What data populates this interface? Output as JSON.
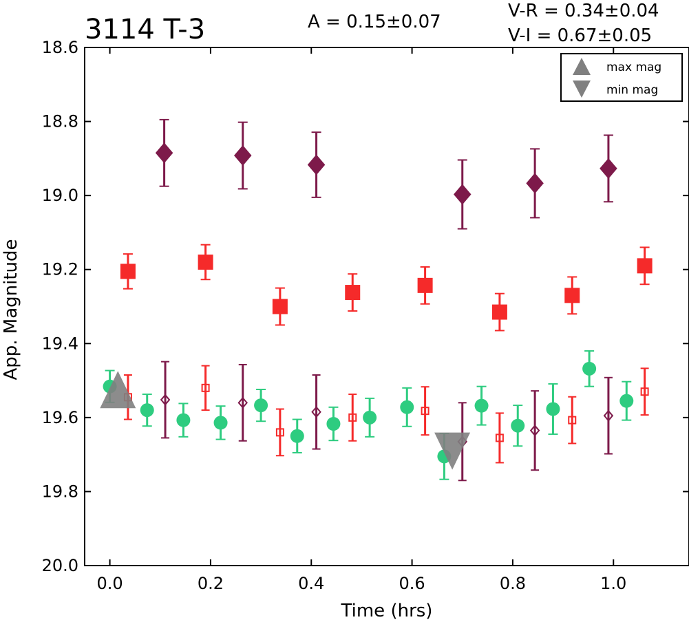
{
  "chart_data": {
    "type": "scatter",
    "title": "3114 T-3",
    "amplitude_text": "A  = 0.15±0.07",
    "color_indices": [
      "V-R = 0.34±0.04",
      "V-I  = 0.67±0.05"
    ],
    "xlabel": "Time (hrs)",
    "ylabel": "App. Magnitude",
    "xlim": [
      -0.05,
      1.15
    ],
    "ylim": [
      20.0,
      18.6
    ],
    "y_inverted": true,
    "xticks": [
      "0.0",
      "0.2",
      "0.4",
      "0.6",
      "0.8",
      "1.0"
    ],
    "yticks": [
      "18.6",
      "18.8",
      "19.0",
      "19.2",
      "19.4",
      "19.6",
      "19.8",
      "20.0"
    ],
    "grid": false,
    "legend_position": "top-right",
    "legend": [
      "max mag",
      "min mag"
    ],
    "series": [
      {
        "marker": "diamond",
        "filled": true,
        "color": "#7d1a4a",
        "x": [
          0.108,
          0.264,
          0.41,
          0.7,
          0.844,
          0.99
        ],
        "y": [
          18.885,
          18.892,
          18.917,
          18.997,
          18.967,
          18.927
        ],
        "err": [
          0.09,
          0.09,
          0.088,
          0.093,
          0.093,
          0.09
        ]
      },
      {
        "marker": "square",
        "filled": true,
        "color": "#f52a2a",
        "x": [
          0.036,
          0.19,
          0.338,
          0.482,
          0.626,
          0.774,
          0.918,
          1.062
        ],
        "y": [
          19.205,
          19.18,
          19.3,
          19.262,
          19.243,
          19.315,
          19.27,
          19.19
        ],
        "err": [
          0.047,
          0.047,
          0.05,
          0.05,
          0.05,
          0.05,
          0.05,
          0.05
        ]
      },
      {
        "marker": "circle",
        "filled": true,
        "color": "#2ecc80",
        "x": [
          0.0,
          0.074,
          0.146,
          0.22,
          0.3,
          0.372,
          0.444,
          0.516,
          0.59,
          0.664,
          0.738,
          0.81,
          0.88,
          0.952,
          1.026
        ],
        "y": [
          19.516,
          19.58,
          19.607,
          19.614,
          19.567,
          19.65,
          19.617,
          19.6,
          19.572,
          19.705,
          19.568,
          19.622,
          19.577,
          19.468,
          19.555
        ],
        "err": [
          0.043,
          0.043,
          0.045,
          0.045,
          0.043,
          0.045,
          0.045,
          0.052,
          0.052,
          0.062,
          0.052,
          0.055,
          0.068,
          0.048,
          0.052
        ]
      },
      {
        "marker": "square",
        "filled": false,
        "color": "#f52a2a",
        "x": [
          0.036,
          0.19,
          0.338,
          0.482,
          0.626,
          0.774,
          0.918,
          1.062
        ],
        "y": [
          19.545,
          19.52,
          19.64,
          19.6,
          19.582,
          19.655,
          19.607,
          19.53
        ],
        "err": [
          0.06,
          0.06,
          0.063,
          0.063,
          0.065,
          0.067,
          0.063,
          0.063
        ]
      },
      {
        "marker": "diamond",
        "filled": false,
        "color": "#7d1a4a",
        "x": [
          0.11,
          0.264,
          0.41,
          0.7,
          0.844,
          0.99
        ],
        "y": [
          19.552,
          19.56,
          19.585,
          19.665,
          19.635,
          19.595
        ],
        "err": [
          0.103,
          0.103,
          0.1,
          0.105,
          0.107,
          0.103
        ]
      }
    ],
    "max_mag_marker": {
      "x": 0.016,
      "y": 19.53,
      "color": "#808080"
    },
    "min_mag_marker": {
      "x": 0.68,
      "y": 19.685,
      "color": "#808080"
    }
  }
}
